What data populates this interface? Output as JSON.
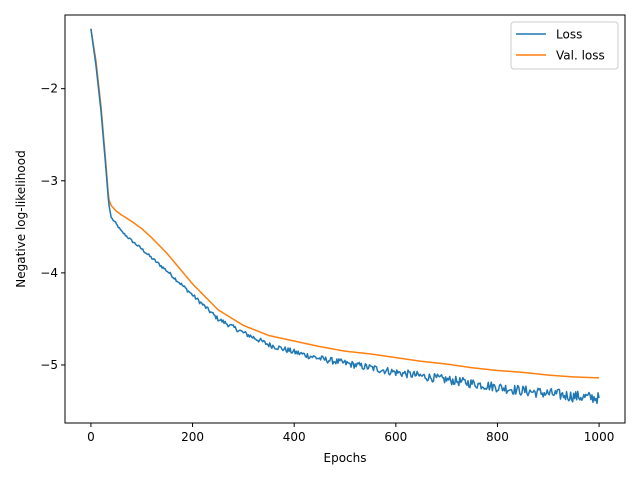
{
  "chart_data": {
    "type": "line",
    "title": "",
    "xlabel": "Epochs",
    "ylabel": "Negative log-likelihood",
    "xlim": [
      -51,
      1051
    ],
    "ylim": [
      -5.63,
      -1.2
    ],
    "xticks": [
      0,
      200,
      400,
      600,
      800,
      1000
    ],
    "yticks": [
      -5,
      -4,
      -3,
      -2
    ],
    "xtick_labels": [
      "0",
      "200",
      "400",
      "600",
      "800",
      "1000"
    ],
    "ytick_labels": [
      "−5",
      "−4",
      "−3",
      "−2"
    ],
    "grid": false,
    "legend_position": "top-right",
    "series": [
      {
        "name": "Loss",
        "color": "#1f77b4",
        "noisy": true,
        "x": [
          0,
          10,
          20,
          30,
          35,
          40,
          50,
          60,
          80,
          100,
          120,
          150,
          200,
          250,
          300,
          350,
          400,
          450,
          500,
          550,
          600,
          650,
          700,
          750,
          800,
          850,
          900,
          950,
          1000
        ],
        "y": [
          -1.35,
          -1.75,
          -2.25,
          -2.9,
          -3.25,
          -3.4,
          -3.47,
          -3.55,
          -3.65,
          -3.74,
          -3.84,
          -3.98,
          -4.24,
          -4.5,
          -4.65,
          -4.78,
          -4.86,
          -4.93,
          -4.98,
          -5.03,
          -5.08,
          -5.12,
          -5.16,
          -5.2,
          -5.24,
          -5.28,
          -5.31,
          -5.34,
          -5.36
        ]
      },
      {
        "name": "Val. loss",
        "color": "#ff7f0e",
        "noisy": false,
        "x": [
          0,
          10,
          20,
          30,
          35,
          40,
          50,
          60,
          80,
          100,
          120,
          150,
          200,
          250,
          300,
          350,
          400,
          450,
          500,
          550,
          600,
          650,
          700,
          750,
          800,
          850,
          900,
          950,
          1000
        ],
        "y": [
          -1.35,
          -1.7,
          -2.2,
          -2.85,
          -3.2,
          -3.27,
          -3.33,
          -3.37,
          -3.44,
          -3.52,
          -3.62,
          -3.79,
          -4.12,
          -4.4,
          -4.57,
          -4.68,
          -4.74,
          -4.8,
          -4.85,
          -4.88,
          -4.92,
          -4.96,
          -4.99,
          -5.03,
          -5.06,
          -5.08,
          -5.11,
          -5.13,
          -5.14
        ]
      }
    ]
  }
}
